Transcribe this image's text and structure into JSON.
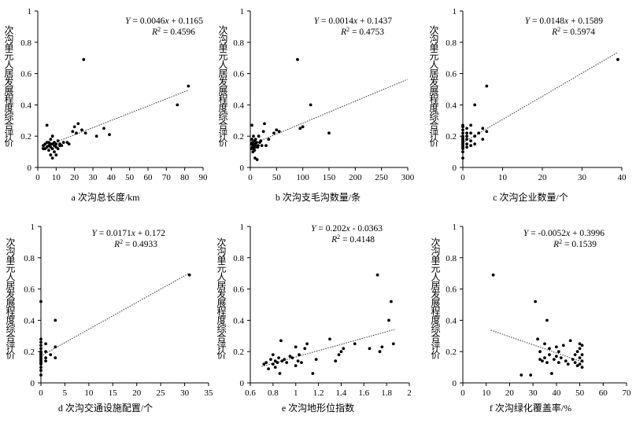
{
  "chart_data": [
    {
      "type": "scatter",
      "caption": "a 次沟总长度/km",
      "ylabel": "次沟单元人居发展程度综合评价",
      "equation": "Y = 0.0046x + 0.1165",
      "r2": "R2 = 0.4596",
      "xticks": [
        "0",
        "10",
        "20",
        "30",
        "40",
        "50",
        "60",
        "70",
        "80",
        "90"
      ],
      "yticks": [
        "0",
        "0.2",
        "0.4",
        "0.6",
        "0.8",
        "1"
      ],
      "xlim": [
        0,
        90
      ],
      "ylim": [
        0,
        1
      ],
      "fit": {
        "slope": 0.0046,
        "intercept": 0.1165,
        "x_range": [
          2,
          82
        ]
      },
      "points": [
        [
          3,
          0.12
        ],
        [
          3,
          0.14
        ],
        [
          4,
          0.15
        ],
        [
          4,
          0.12
        ],
        [
          5,
          0.13
        ],
        [
          5,
          0.16
        ],
        [
          5,
          0.27
        ],
        [
          6,
          0.14
        ],
        [
          6,
          0.11
        ],
        [
          6,
          0.16
        ],
        [
          7,
          0.13
        ],
        [
          7,
          0.15
        ],
        [
          7,
          0.08
        ],
        [
          7,
          0.18
        ],
        [
          8,
          0.12
        ],
        [
          8,
          0.15
        ],
        [
          8,
          0.06
        ],
        [
          8,
          0.2
        ],
        [
          9,
          0.14
        ],
        [
          9,
          0.16
        ],
        [
          9,
          0.1
        ],
        [
          10,
          0.13
        ],
        [
          10,
          0.08
        ],
        [
          10,
          0.15
        ],
        [
          11,
          0.12
        ],
        [
          11,
          0.17
        ],
        [
          12,
          0.14
        ],
        [
          12,
          0.15
        ],
        [
          13,
          0.14
        ],
        [
          14,
          0.16
        ],
        [
          16,
          0.16
        ],
        [
          17,
          0.15
        ],
        [
          19,
          0.23
        ],
        [
          20,
          0.26
        ],
        [
          21,
          0.22
        ],
        [
          22,
          0.28
        ],
        [
          24,
          0.24
        ],
        [
          25,
          0.69
        ],
        [
          26,
          0.22
        ],
        [
          32,
          0.2
        ],
        [
          36,
          0.25
        ],
        [
          39,
          0.21
        ],
        [
          76,
          0.4
        ],
        [
          82,
          0.52
        ]
      ]
    },
    {
      "type": "scatter",
      "caption": "b 次沟支毛沟数量/条",
      "ylabel": "次沟单元人居发展程度综合评价",
      "equation": "Y = 0.0014x + 0.1437",
      "r2": "R2 = 0.4753",
      "xticks": [
        "0",
        "50",
        "100",
        "150",
        "200",
        "250",
        "300"
      ],
      "yticks": [
        "0",
        "0.2",
        "0.4",
        "0.6",
        "0.8",
        "1"
      ],
      "xlim": [
        0,
        300
      ],
      "ylim": [
        0,
        1
      ],
      "fit": {
        "slope": 0.0014,
        "intercept": 0.1437,
        "x_range": [
          0,
          300
        ]
      },
      "points": [
        [
          2,
          0.12
        ],
        [
          2,
          0.15
        ],
        [
          3,
          0.27
        ],
        [
          3,
          0.18
        ],
        [
          4,
          0.13
        ],
        [
          4,
          0.16
        ],
        [
          5,
          0.1
        ],
        [
          5,
          0.14
        ],
        [
          6,
          0.12
        ],
        [
          6,
          0.2
        ],
        [
          7,
          0.15
        ],
        [
          7,
          0.14
        ],
        [
          8,
          0.17
        ],
        [
          8,
          0.11
        ],
        [
          9,
          0.15
        ],
        [
          9,
          0.06
        ],
        [
          10,
          0.13
        ],
        [
          10,
          0.18
        ],
        [
          11,
          0.14
        ],
        [
          12,
          0.16
        ],
        [
          13,
          0.05
        ],
        [
          14,
          0.13
        ],
        [
          15,
          0.14
        ],
        [
          16,
          0.2
        ],
        [
          18,
          0.16
        ],
        [
          20,
          0.17
        ],
        [
          22,
          0.14
        ],
        [
          25,
          0.23
        ],
        [
          27,
          0.28
        ],
        [
          30,
          0.14
        ],
        [
          35,
          0.18
        ],
        [
          45,
          0.22
        ],
        [
          50,
          0.24
        ],
        [
          55,
          0.23
        ],
        [
          90,
          0.69
        ],
        [
          95,
          0.25
        ],
        [
          100,
          0.26
        ],
        [
          115,
          0.4
        ],
        [
          150,
          0.22
        ]
      ]
    },
    {
      "type": "scatter",
      "caption": "c 次沟企业数量/个",
      "ylabel": "次沟单元人居发展程度综合评价",
      "equation": "Y = 0.0148x + 0.1589",
      "r2": "R2 = 0.5974",
      "xticks": [
        "0",
        "10",
        "20",
        "30",
        "40"
      ],
      "yticks": [
        "0",
        "0.2",
        "0.4",
        "0.6",
        "0.8",
        "1"
      ],
      "xlim": [
        0,
        40
      ],
      "ylim": [
        0,
        1
      ],
      "fit": {
        "slope": 0.0148,
        "intercept": 0.1589,
        "x_range": [
          0,
          39
        ]
      },
      "points": [
        [
          0,
          0.06
        ],
        [
          0,
          0.1
        ],
        [
          0,
          0.12
        ],
        [
          0,
          0.13
        ],
        [
          0,
          0.14
        ],
        [
          0,
          0.15
        ],
        [
          0,
          0.16
        ],
        [
          0,
          0.17
        ],
        [
          0,
          0.18
        ],
        [
          0,
          0.19
        ],
        [
          0,
          0.2
        ],
        [
          0,
          0.22
        ],
        [
          0,
          0.24
        ],
        [
          0,
          0.26
        ],
        [
          0,
          0.27
        ],
        [
          1,
          0.13
        ],
        [
          1,
          0.15
        ],
        [
          1,
          0.18
        ],
        [
          1,
          0.2
        ],
        [
          1,
          0.22
        ],
        [
          1,
          0.25
        ],
        [
          2,
          0.14
        ],
        [
          2,
          0.17
        ],
        [
          2,
          0.22
        ],
        [
          2,
          0.27
        ],
        [
          3,
          0.2
        ],
        [
          3,
          0.4
        ],
        [
          3,
          0.15
        ],
        [
          4,
          0.22
        ],
        [
          5,
          0.18
        ],
        [
          5,
          0.25
        ],
        [
          6,
          0.52
        ],
        [
          6,
          0.23
        ],
        [
          39,
          0.69
        ]
      ]
    },
    {
      "type": "scatter",
      "caption": "d 次沟交通设施配置/个",
      "ylabel": "次沟单元人居发展程度综合评价",
      "equation": "Y = 0.0171x + 0.172",
      "r2": "R2 = 0.4933",
      "xticks": [
        "0",
        "5",
        "10",
        "15",
        "20",
        "25",
        "30",
        "35"
      ],
      "yticks": [
        "0",
        "0.2",
        "0.4",
        "0.6",
        "0.8",
        "1"
      ],
      "xlim": [
        0,
        35
      ],
      "ylim": [
        0,
        1
      ],
      "fit": {
        "slope": 0.0171,
        "intercept": 0.172,
        "x_range": [
          0,
          31
        ]
      },
      "points": [
        [
          0,
          0.05
        ],
        [
          0,
          0.08
        ],
        [
          0,
          0.1
        ],
        [
          0,
          0.12
        ],
        [
          0,
          0.13
        ],
        [
          0,
          0.14
        ],
        [
          0,
          0.15
        ],
        [
          0,
          0.16
        ],
        [
          0,
          0.17
        ],
        [
          0,
          0.18
        ],
        [
          0,
          0.19
        ],
        [
          0,
          0.2
        ],
        [
          0,
          0.22
        ],
        [
          0,
          0.24
        ],
        [
          0,
          0.26
        ],
        [
          0,
          0.28
        ],
        [
          0,
          0.52
        ],
        [
          1,
          0.14
        ],
        [
          1,
          0.16
        ],
        [
          1,
          0.2
        ],
        [
          1,
          0.25
        ],
        [
          2,
          0.18
        ],
        [
          3,
          0.4
        ],
        [
          3,
          0.23
        ],
        [
          3,
          0.16
        ],
        [
          31,
          0.69
        ]
      ]
    },
    {
      "type": "scatter",
      "caption": "e 次沟地形位指数",
      "ylabel": "次沟单元人居发展程度综合评价",
      "equation": "Y = 0.202x - 0.0363",
      "r2": "R2 = 0.4148",
      "xticks": [
        "0.6",
        "0.8",
        "1",
        "1.2",
        "1.4",
        "1.6",
        "1.8",
        "2"
      ],
      "yticks": [
        "0",
        "0.2",
        "0.4",
        "0.6",
        "0.8",
        "1"
      ],
      "xlim": [
        0.6,
        2
      ],
      "ylim": [
        0,
        1
      ],
      "fit": {
        "slope": 0.202,
        "intercept": -0.0363,
        "x_range": [
          0.7,
          1.87
        ]
      },
      "points": [
        [
          0.72,
          0.12
        ],
        [
          0.74,
          0.13
        ],
        [
          0.76,
          0.09
        ],
        [
          0.78,
          0.15
        ],
        [
          0.8,
          0.12
        ],
        [
          0.8,
          0.18
        ],
        [
          0.82,
          0.14
        ],
        [
          0.82,
          0.1
        ],
        [
          0.84,
          0.13
        ],
        [
          0.85,
          0.16
        ],
        [
          0.86,
          0.06
        ],
        [
          0.87,
          0.27
        ],
        [
          0.88,
          0.14
        ],
        [
          0.9,
          0.15
        ],
        [
          0.92,
          0.13
        ],
        [
          0.95,
          0.17
        ],
        [
          0.97,
          0.16
        ],
        [
          1.0,
          0.23
        ],
        [
          1.0,
          0.11
        ],
        [
          1.02,
          0.14
        ],
        [
          1.03,
          0.18
        ],
        [
          1.05,
          0.13
        ],
        [
          1.08,
          0.22
        ],
        [
          1.1,
          0.25
        ],
        [
          1.15,
          0.06
        ],
        [
          1.18,
          0.15
        ],
        [
          1.3,
          0.28
        ],
        [
          1.35,
          0.14
        ],
        [
          1.38,
          0.18
        ],
        [
          1.4,
          0.2
        ],
        [
          1.42,
          0.22
        ],
        [
          1.52,
          0.25
        ],
        [
          1.65,
          0.22
        ],
        [
          1.72,
          0.69
        ],
        [
          1.74,
          0.2
        ],
        [
          1.76,
          0.23
        ],
        [
          1.82,
          0.4
        ],
        [
          1.84,
          0.52
        ],
        [
          1.86,
          0.25
        ]
      ]
    },
    {
      "type": "scatter",
      "caption": "f 次沟绿化覆盖率/%",
      "ylabel": "次沟单元人居发展程度综合评价",
      "equation": "Y = -0.0052x + 0.3996",
      "r2": "R2 = 0.1539",
      "xticks": [
        "0",
        "10",
        "20",
        "30",
        "40",
        "50",
        "60",
        "70"
      ],
      "yticks": [
        "0",
        "0.2",
        "0.4",
        "0.6",
        "0.8",
        "1"
      ],
      "xlim": [
        0,
        70
      ],
      "ylim": [
        0,
        1
      ],
      "fit": {
        "slope": -0.0052,
        "intercept": 0.3996,
        "x_range": [
          12,
          52
        ]
      },
      "points": [
        [
          13,
          0.69
        ],
        [
          25,
          0.05
        ],
        [
          29,
          0.05
        ],
        [
          31,
          0.52
        ],
        [
          32,
          0.28
        ],
        [
          33,
          0.15
        ],
        [
          33,
          0.2
        ],
        [
          34,
          0.14
        ],
        [
          35,
          0.25
        ],
        [
          35,
          0.16
        ],
        [
          36,
          0.13
        ],
        [
          36,
          0.4
        ],
        [
          37,
          0.22
        ],
        [
          37,
          0.18
        ],
        [
          38,
          0.06
        ],
        [
          39,
          0.15
        ],
        [
          40,
          0.23
        ],
        [
          40,
          0.17
        ],
        [
          41,
          0.13
        ],
        [
          41,
          0.2
        ],
        [
          42,
          0.16
        ],
        [
          43,
          0.24
        ],
        [
          44,
          0.14
        ],
        [
          45,
          0.12
        ],
        [
          46,
          0.27
        ],
        [
          47,
          0.15
        ],
        [
          48,
          0.18
        ],
        [
          48,
          0.13
        ],
        [
          49,
          0.11
        ],
        [
          49,
          0.2
        ],
        [
          50,
          0.25
        ],
        [
          50,
          0.16
        ],
        [
          50,
          0.12
        ],
        [
          50,
          0.22
        ],
        [
          51,
          0.14
        ],
        [
          51,
          0.1
        ],
        [
          51,
          0.24
        ],
        [
          51,
          0.18
        ]
      ]
    }
  ]
}
